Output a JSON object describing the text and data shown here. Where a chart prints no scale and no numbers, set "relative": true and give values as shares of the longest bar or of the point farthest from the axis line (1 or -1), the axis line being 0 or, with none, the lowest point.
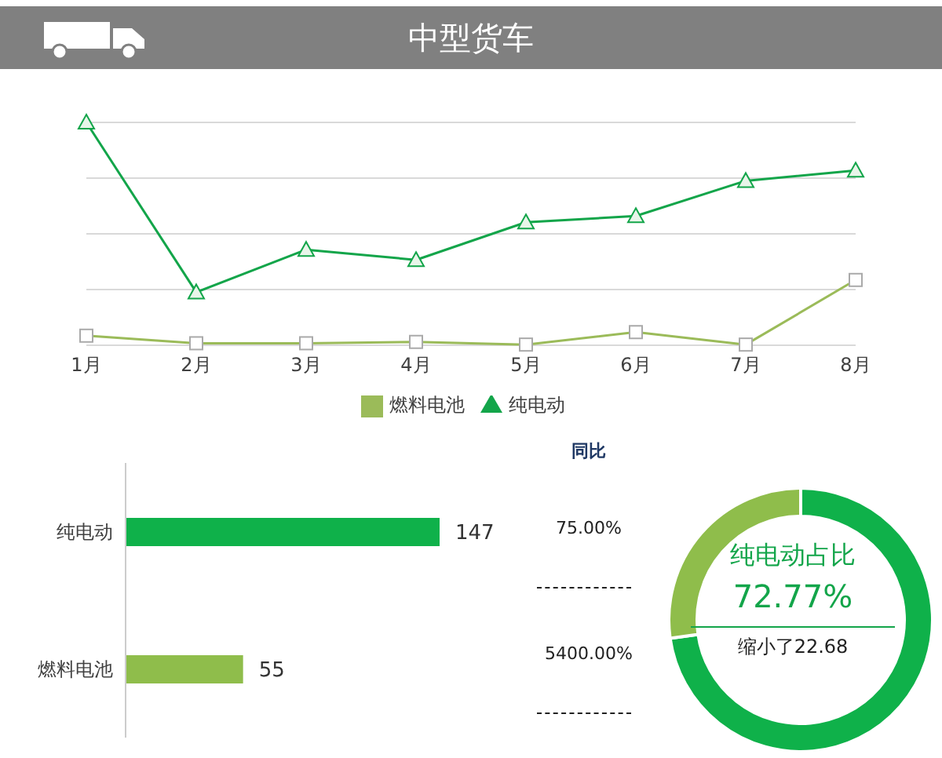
{
  "chart_data": [
    {
      "type": "line",
      "title": "中型货车",
      "relative": true,
      "categories": [
        "1月",
        "2月",
        "3月",
        "4月",
        "5月",
        "6月",
        "7月",
        "8月"
      ],
      "grid": "y",
      "legend": "bottom",
      "series": [
        {
          "name": "燃料电池",
          "color": "#9bbb59",
          "marker": "square",
          "values": [
            0.043,
            0.009,
            0.009,
            0.015,
            0.003,
            0.059,
            0.003,
            0.293
          ]
        },
        {
          "name": "纯电动",
          "color": "#13a54a",
          "marker": "triangle",
          "values": [
            1,
            0.238,
            0.429,
            0.383,
            0.552,
            0.58,
            0.738,
            0.784
          ]
        }
      ]
    },
    {
      "type": "bar",
      "orientation": "horizontal",
      "categories": [
        "纯电动",
        "燃料电池"
      ],
      "values": [
        147,
        55
      ],
      "colors": [
        "#0fb14a",
        "#8fbd4b"
      ],
      "data_labels": true
    },
    {
      "type": "other",
      "title": "同比",
      "annotations": [
        "75.00%",
        "5400.00%"
      ]
    },
    {
      "type": "donut",
      "title": "纯电动占比",
      "categories": [
        null,
        null
      ],
      "values": [
        72.77,
        27.23
      ],
      "colors": [
        "#0fb14a",
        "#8fbd4b"
      ],
      "annotations": [
        "72.77%",
        "缩小了22.68"
      ]
    }
  ]
}
